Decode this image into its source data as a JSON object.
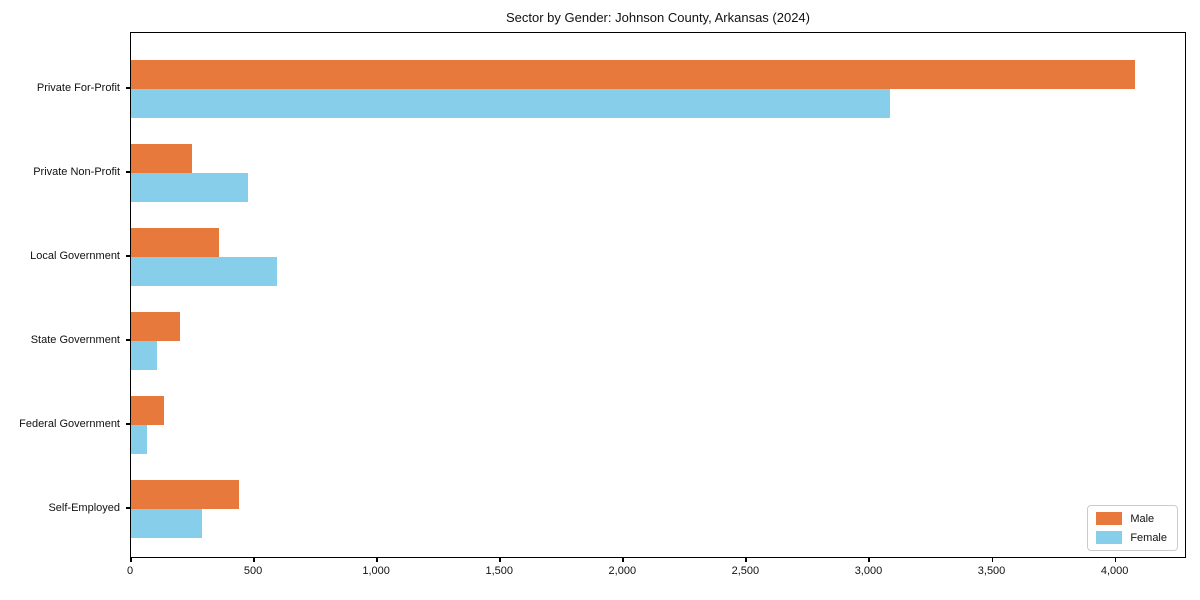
{
  "title": "Sector by Gender: Johnson County, Arkansas (2024)",
  "legend": {
    "position": "lower right",
    "items": [
      {
        "label": "Male",
        "color": "#E8793D"
      },
      {
        "label": "Female",
        "color": "#87CEEB"
      }
    ]
  },
  "chart_data": {
    "type": "bar",
    "orientation": "horizontal",
    "title": "Sector by Gender: Johnson County, Arkansas (2024)",
    "categories": [
      "Private For-Profit",
      "Private Non-Profit",
      "Local Government",
      "State Government",
      "Federal Government",
      "Self-Employed"
    ],
    "series": [
      {
        "name": "Male",
        "color": "#E8793D",
        "values": [
          4085,
          250,
          360,
          200,
          135,
          440
        ]
      },
      {
        "name": "Female",
        "color": "#87CEEB",
        "values": [
          3090,
          475,
          595,
          105,
          65,
          290
        ]
      }
    ],
    "xlabel": "",
    "ylabel": "",
    "xlim": [
      0,
      4290
    ],
    "xticks": [
      0,
      500,
      1000,
      1500,
      2000,
      2500,
      3000,
      3500,
      4000
    ],
    "xtick_labels": [
      "0",
      "500",
      "1,000",
      "1,500",
      "2,000",
      "2,500",
      "3,000",
      "3,500",
      "4,000"
    ],
    "grid": false,
    "legend_position": "lower right"
  }
}
